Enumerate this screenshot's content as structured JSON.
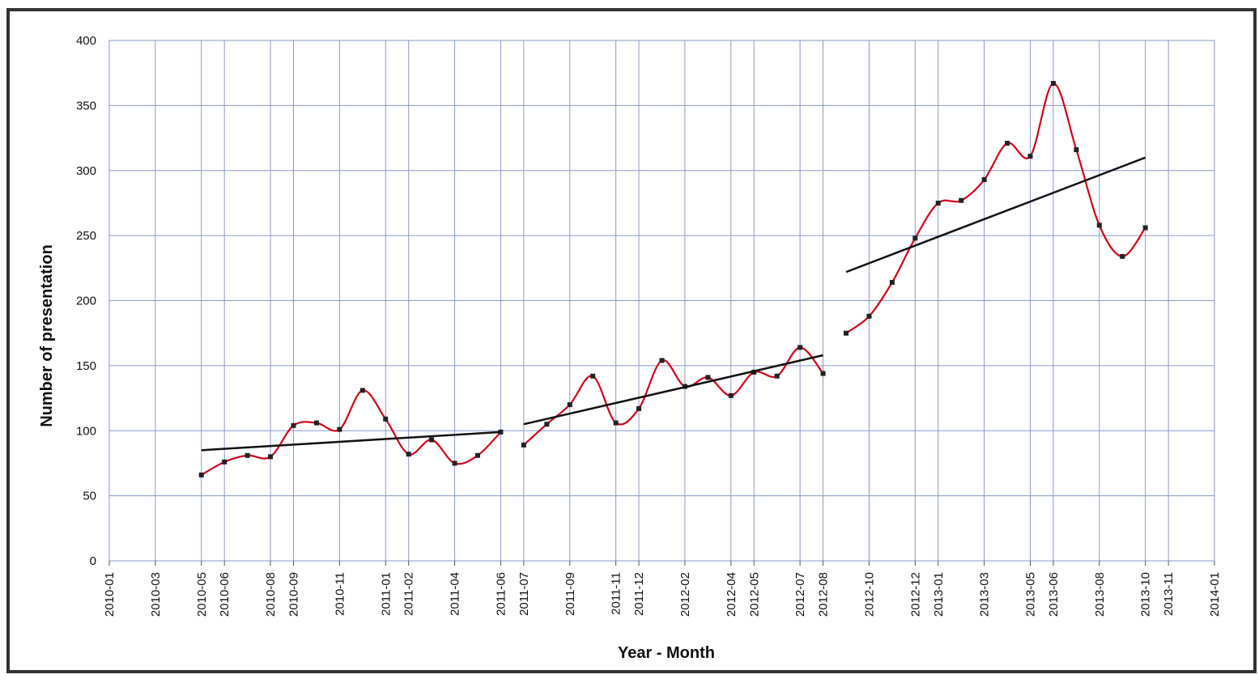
{
  "chart_data": {
    "type": "line",
    "x_label": "Year - Month",
    "y_label": "Number of presentation",
    "xlim": [
      "2010-01",
      "2014-01"
    ],
    "xticks": [
      "2010-01",
      "2010-03",
      "2010-05",
      "2010-06",
      "2010-08",
      "2010-09",
      "2010-11",
      "2011-01",
      "2011-02",
      "2011-04",
      "2011-06",
      "2011-07",
      "2011-09",
      "2011-11",
      "2011-12",
      "2012-02",
      "2012-04",
      "2012-05",
      "2012-07",
      "2012-08",
      "2012-10",
      "2012-12",
      "2013-01",
      "2013-03",
      "2013-05",
      "2013-06",
      "2013-08",
      "2013-10",
      "2013-11",
      "2014-01"
    ],
    "ylim": [
      0,
      400
    ],
    "yticks": [
      0,
      50,
      100,
      150,
      200,
      250,
      300,
      350,
      400
    ],
    "grid": true,
    "series": [
      {
        "color": "#d0021b",
        "smooth": true,
        "markers": true,
        "x": [
          "2010-05",
          "2010-06",
          "2010-07",
          "2010-08",
          "2010-09",
          "2010-10",
          "2010-11",
          "2010-12",
          "2011-01",
          "2011-02",
          "2011-03",
          "2011-04",
          "2011-05",
          "2011-06"
        ],
        "values": [
          66,
          76,
          81,
          80,
          104,
          106,
          101,
          131,
          109,
          82,
          93,
          75,
          81,
          99
        ]
      },
      {
        "color": "#d0021b",
        "smooth": true,
        "markers": true,
        "x": [
          "2011-07",
          "2011-08",
          "2011-09",
          "2011-10",
          "2011-11",
          "2011-12",
          "2012-01",
          "2012-02",
          "2012-03",
          "2012-04",
          "2012-05",
          "2012-06",
          "2012-07",
          "2012-08"
        ],
        "values": [
          89,
          105,
          120,
          142,
          106,
          117,
          154,
          134,
          141,
          127,
          145,
          142,
          164,
          144
        ]
      },
      {
        "color": "#d0021b",
        "smooth": true,
        "markers": true,
        "x": [
          "2012-09",
          "2012-10",
          "2012-11",
          "2012-12",
          "2013-01",
          "2013-02",
          "2013-03",
          "2013-04",
          "2013-05",
          "2013-06",
          "2013-07",
          "2013-08",
          "2013-09",
          "2013-10"
        ],
        "values": [
          175,
          188,
          214,
          248,
          275,
          277,
          293,
          321,
          311,
          367,
          316,
          258,
          234,
          256
        ]
      },
      {
        "color": "#111111",
        "smooth": false,
        "markers": false,
        "x": [
          "2010-05",
          "2011-06"
        ],
        "values": [
          85,
          99
        ]
      },
      {
        "color": "#111111",
        "smooth": false,
        "markers": false,
        "x": [
          "2011-07",
          "2012-08"
        ],
        "values": [
          105,
          158
        ]
      },
      {
        "color": "#111111",
        "smooth": false,
        "markers": false,
        "x": [
          "2012-09",
          "2013-10"
        ],
        "values": [
          222,
          310
        ]
      }
    ]
  }
}
